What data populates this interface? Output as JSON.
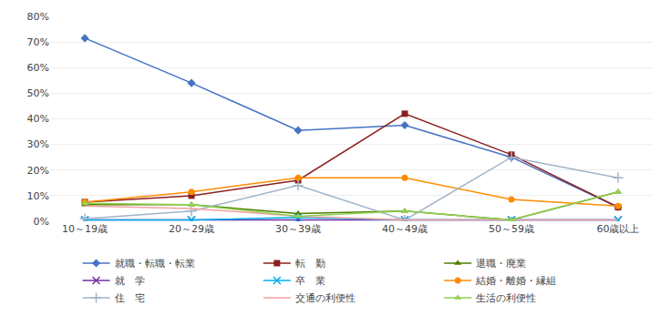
{
  "chart_data": {
    "type": "line",
    "categories": [
      "10～19歳",
      "20～29歳",
      "30～39歳",
      "40～49歳",
      "50～59歳",
      "60歳以上"
    ],
    "series": [
      {
        "name": "就職・転職・転業",
        "color": "#4472C4",
        "marker": "diamond",
        "line_style": "solid",
        "values": [
          71.5,
          54.0,
          35.5,
          37.5,
          25.0,
          5.5
        ]
      },
      {
        "name": "転　勤",
        "color": "#8B2020",
        "marker": "square",
        "line_style": "solid",
        "values": [
          7.5,
          10.0,
          16.0,
          42.0,
          26.0,
          5.5
        ]
      },
      {
        "name": "退職・廃業",
        "color": "#4F7F00",
        "marker": "triangle",
        "line_style": "solid",
        "values": [
          6.5,
          6.5,
          3.0,
          4.0,
          0.5,
          11.5
        ]
      },
      {
        "name": "就　学",
        "color": "#7030A0",
        "marker": "x",
        "line_style": "solid",
        "values": [
          0.5,
          0.5,
          0.5,
          0.5,
          0.5,
          0.5
        ]
      },
      {
        "name": "卒　業",
        "color": "#00B0F0",
        "marker": "x",
        "line_style": "solid",
        "values": [
          0.5,
          0.5,
          1.5,
          0.5,
          0.5,
          0.5
        ]
      },
      {
        "name": "結婚・離婚・縁組",
        "color": "#FF8C00",
        "marker": "circle",
        "line_style": "solid",
        "values": [
          7.5,
          11.5,
          17.0,
          17.0,
          8.5,
          6.0
        ]
      },
      {
        "name": "住　宅",
        "color": "#A0B4C8",
        "marker": "plus",
        "line_style": "solid",
        "values": [
          1.0,
          4.0,
          14.0,
          0.5,
          25.0,
          17.0
        ]
      },
      {
        "name": "交通の利便性",
        "color": "#F4A0A0",
        "marker": "none",
        "line_style": "solid",
        "values": [
          6.0,
          5.0,
          2.0,
          0.5,
          0.5,
          0.5
        ]
      },
      {
        "name": "生活の利便性",
        "color": "#92D050",
        "marker": "triangle",
        "line_style": "solid",
        "values": [
          7.0,
          6.5,
          2.0,
          4.0,
          0.5,
          11.5
        ]
      }
    ],
    "ylim": [
      0,
      80
    ],
    "yticks": [
      {
        "value": 0,
        "label": "0%"
      },
      {
        "value": 10,
        "label": "10%"
      },
      {
        "value": 20,
        "label": "20%"
      },
      {
        "value": 30,
        "label": "30%"
      },
      {
        "value": 40,
        "label": "40%"
      },
      {
        "value": 50,
        "label": "50%"
      },
      {
        "value": 60,
        "label": "60%"
      },
      {
        "value": 70,
        "label": "70%"
      },
      {
        "value": 80,
        "label": "80%"
      }
    ],
    "grid": true,
    "legend": "bottom"
  }
}
